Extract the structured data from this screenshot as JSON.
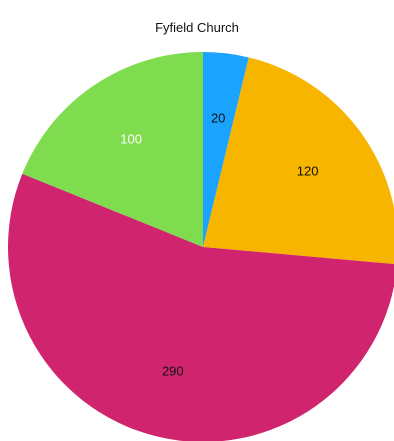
{
  "chart_data": {
    "type": "pie",
    "title": "Fyfield Church",
    "slices": [
      {
        "value": 20,
        "color": "#1aa3ff",
        "label_color": "#111111"
      },
      {
        "value": 120,
        "color": "#f8b500",
        "label_color": "#111111"
      },
      {
        "value": 290,
        "color": "#d0246f",
        "label_color": "#111111"
      },
      {
        "value": 100,
        "color": "#7fdc4f",
        "label_color": "#ffffff"
      }
    ]
  }
}
